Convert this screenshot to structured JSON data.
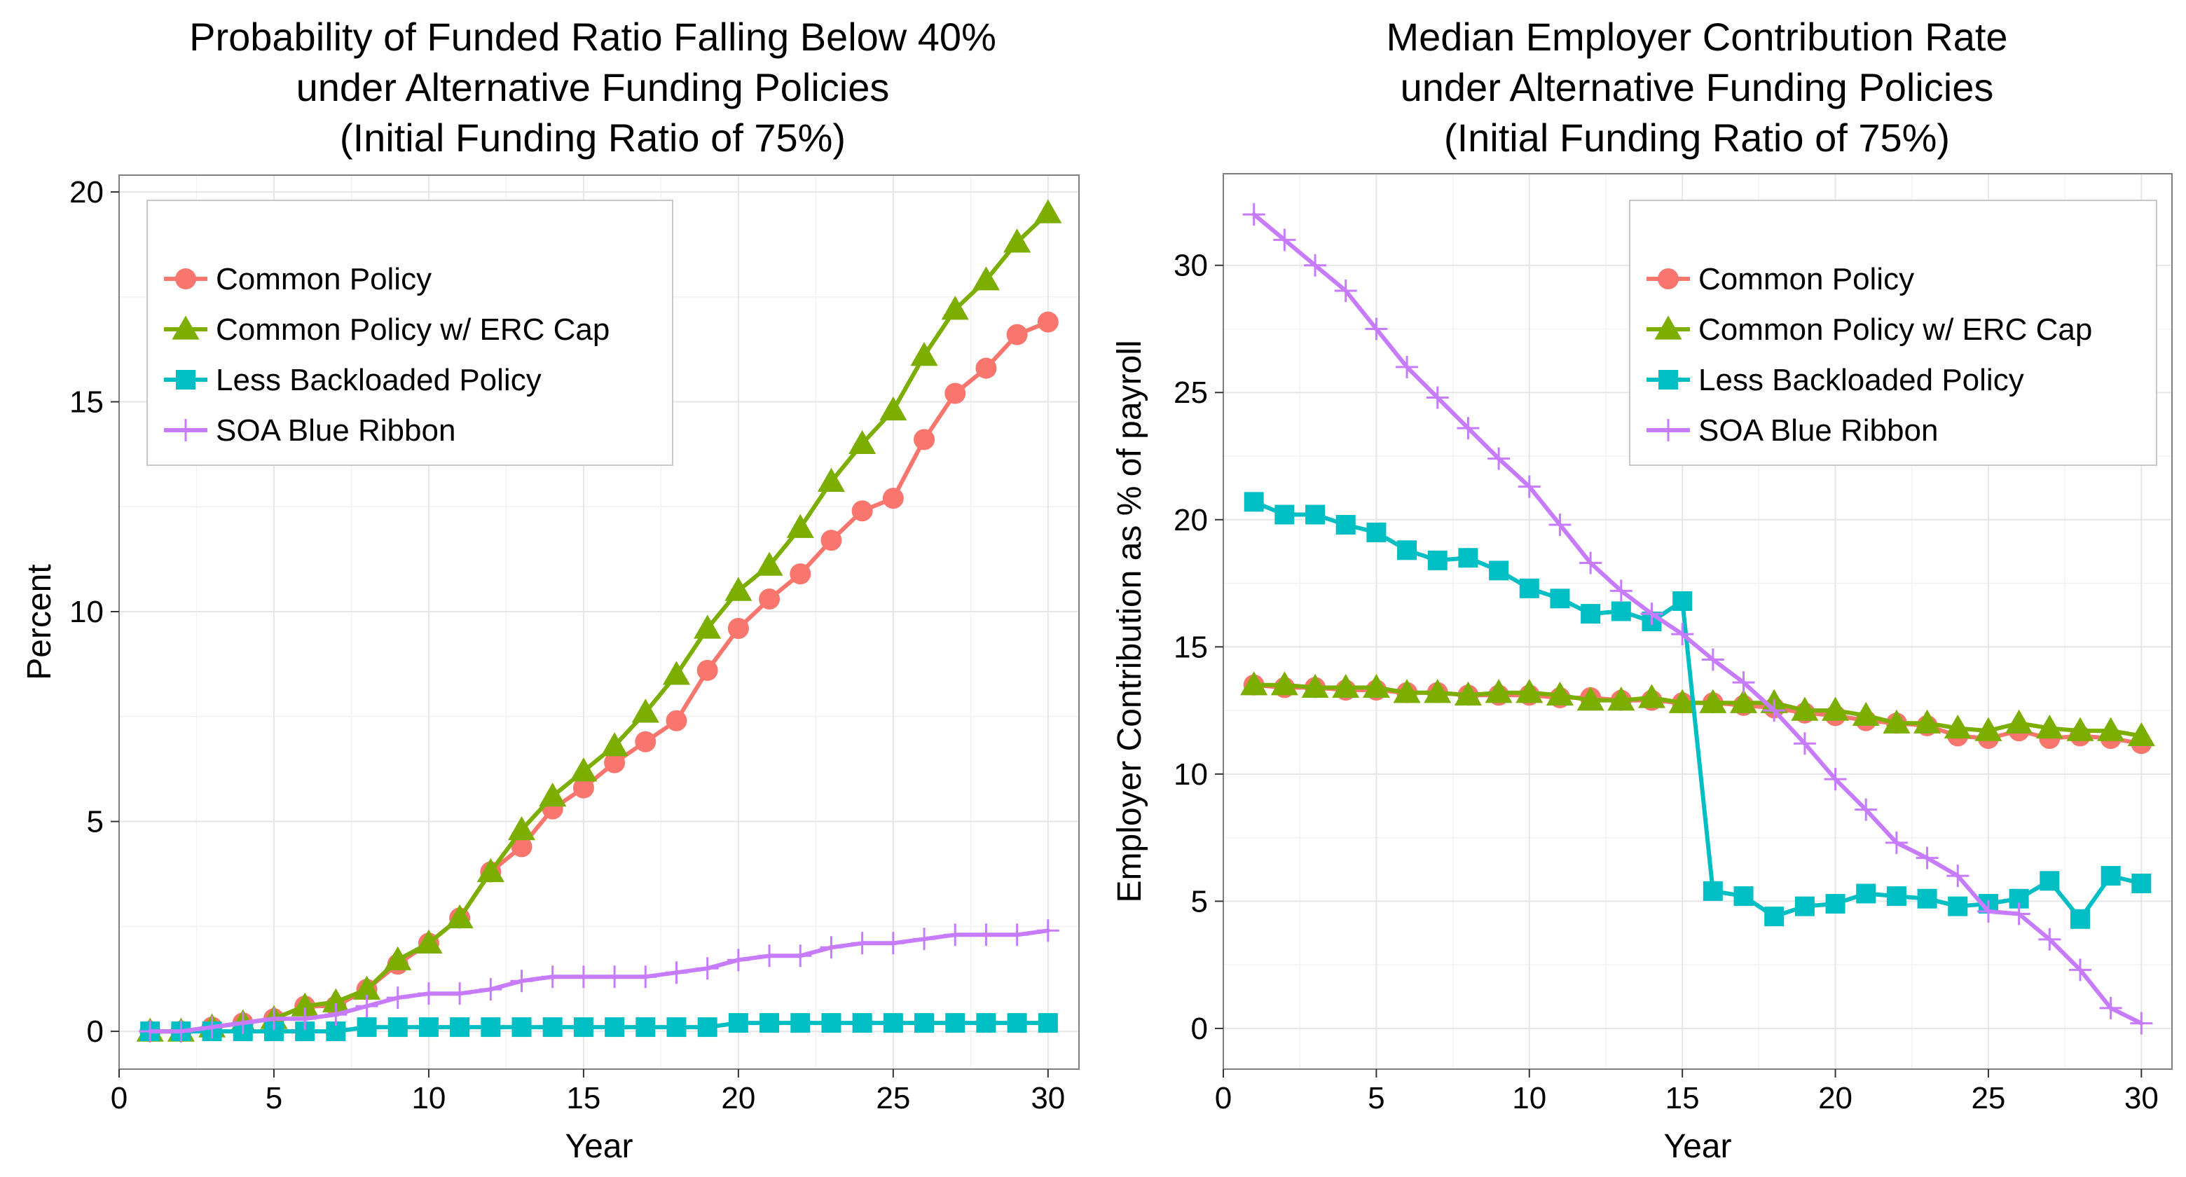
{
  "colors": {
    "common": "#F8766D",
    "erc_cap": "#7CAE00",
    "less_backloaded": "#00BFC4",
    "soa": "#C77CFF"
  },
  "chart_data": [
    {
      "type": "line",
      "title_lines": [
        "Probability of Funded Ratio Falling Below 40%",
        "under Alternative Funding Policies",
        "(Initial Funding Ratio of 75%)"
      ],
      "xlabel": "Year",
      "ylabel": "Percent",
      "xlim": [
        0,
        31
      ],
      "ylim": [
        -0.9,
        20.4
      ],
      "xticks": [
        0,
        5,
        10,
        15,
        20,
        25,
        30
      ],
      "yticks": [
        0,
        5,
        10,
        15,
        20
      ],
      "grid": true,
      "legend_position": "top-left",
      "x": [
        1,
        2,
        3,
        4,
        5,
        6,
        7,
        8,
        9,
        10,
        11,
        12,
        13,
        14,
        15,
        16,
        17,
        18,
        19,
        20,
        21,
        22,
        23,
        24,
        25,
        26,
        27,
        28,
        29,
        30
      ],
      "series": [
        {
          "name": "Common Policy",
          "marker": "circle",
          "color_key": "common",
          "values": [
            0,
            0,
            0.1,
            0.2,
            0.3,
            0.6,
            0.6,
            1.0,
            1.6,
            2.1,
            2.7,
            3.8,
            4.4,
            5.3,
            5.8,
            6.4,
            6.9,
            7.4,
            8.6,
            9.6,
            10.3,
            10.9,
            11.7,
            12.4,
            12.7,
            14.1,
            15.2,
            15.8,
            16.6,
            16.9
          ]
        },
        {
          "name": "Common Policy w/ ERC Cap",
          "marker": "triangle",
          "color_key": "erc_cap",
          "values": [
            0,
            0,
            0.1,
            0.2,
            0.3,
            0.6,
            0.7,
            1.0,
            1.7,
            2.1,
            2.7,
            3.8,
            4.8,
            5.6,
            6.2,
            6.8,
            7.6,
            8.5,
            9.6,
            10.5,
            11.1,
            12.0,
            13.1,
            14.0,
            14.8,
            16.1,
            17.2,
            17.9,
            18.8,
            19.5
          ]
        },
        {
          "name": "Less Backloaded Policy",
          "marker": "square",
          "color_key": "less_backloaded",
          "values": [
            0,
            0,
            0,
            0,
            0,
            0,
            0,
            0.1,
            0.1,
            0.1,
            0.1,
            0.1,
            0.1,
            0.1,
            0.1,
            0.1,
            0.1,
            0.1,
            0.1,
            0.2,
            0.2,
            0.2,
            0.2,
            0.2,
            0.2,
            0.2,
            0.2,
            0.2,
            0.2,
            0.2
          ]
        },
        {
          "name": "SOA Blue Ribbon",
          "marker": "plus",
          "color_key": "soa",
          "values": [
            0,
            0,
            0.1,
            0.2,
            0.3,
            0.3,
            0.4,
            0.6,
            0.8,
            0.9,
            0.9,
            1.0,
            1.2,
            1.3,
            1.3,
            1.3,
            1.3,
            1.4,
            1.5,
            1.7,
            1.8,
            1.8,
            2.0,
            2.1,
            2.1,
            2.2,
            2.3,
            2.3,
            2.3,
            2.4
          ]
        }
      ]
    },
    {
      "type": "line",
      "title_lines": [
        "Median Employer Contribution Rate",
        "under Alternative Funding Policies",
        "(Initial Funding Ratio of 75%)"
      ],
      "xlabel": "Year",
      "ylabel": "Employer Contribution as % of payroll",
      "xlim": [
        0,
        31
      ],
      "ylim": [
        -1.6,
        33.6
      ],
      "xticks": [
        0,
        5,
        10,
        15,
        20,
        25,
        30
      ],
      "yticks": [
        0,
        5,
        10,
        15,
        20,
        25,
        30
      ],
      "grid": true,
      "legend_position": "top-right",
      "x": [
        1,
        2,
        3,
        4,
        5,
        6,
        7,
        8,
        9,
        10,
        11,
        12,
        13,
        14,
        15,
        16,
        17,
        18,
        19,
        20,
        21,
        22,
        23,
        24,
        25,
        26,
        27,
        28,
        29,
        30
      ],
      "series": [
        {
          "name": "Common Policy",
          "marker": "circle",
          "color_key": "common",
          "values": [
            13.5,
            13.4,
            13.4,
            13.3,
            13.3,
            13.2,
            13.2,
            13.1,
            13.1,
            13.1,
            13.0,
            13.0,
            12.9,
            12.9,
            12.8,
            12.8,
            12.7,
            12.6,
            12.4,
            12.3,
            12.1,
            12.0,
            11.9,
            11.5,
            11.4,
            11.7,
            11.4,
            11.5,
            11.4,
            11.2
          ]
        },
        {
          "name": "Common Policy w/ ERC Cap",
          "marker": "triangle",
          "color_key": "erc_cap",
          "values": [
            13.5,
            13.5,
            13.4,
            13.4,
            13.4,
            13.2,
            13.2,
            13.1,
            13.2,
            13.2,
            13.1,
            12.9,
            12.9,
            13.0,
            12.8,
            12.8,
            12.8,
            12.8,
            12.5,
            12.5,
            12.3,
            12.0,
            12.0,
            11.8,
            11.7,
            12.0,
            11.8,
            11.7,
            11.7,
            11.5
          ]
        },
        {
          "name": "Less Backloaded Policy",
          "marker": "square",
          "color_key": "less_backloaded",
          "values": [
            20.7,
            20.2,
            20.2,
            19.8,
            19.5,
            18.8,
            18.4,
            18.5,
            18.0,
            17.3,
            16.9,
            16.3,
            16.4,
            16.0,
            16.8,
            5.4,
            5.2,
            4.4,
            4.8,
            4.9,
            5.3,
            5.2,
            5.1,
            4.8,
            4.9,
            5.1,
            5.8,
            4.3,
            6.0,
            5.7
          ]
        },
        {
          "name": "SOA Blue Ribbon",
          "marker": "plus",
          "color_key": "soa",
          "values": [
            32.0,
            31.0,
            30.0,
            29.0,
            27.5,
            26.0,
            24.8,
            23.6,
            22.4,
            21.3,
            19.8,
            18.3,
            17.2,
            16.3,
            15.5,
            14.5,
            13.6,
            12.5,
            11.2,
            9.8,
            8.6,
            7.3,
            6.7,
            6.0,
            4.6,
            4.5,
            3.5,
            2.3,
            0.8,
            0.2
          ]
        }
      ]
    }
  ]
}
